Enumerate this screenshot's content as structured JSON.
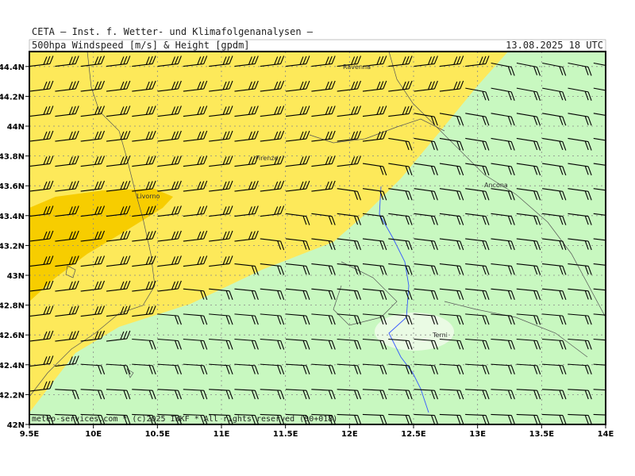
{
  "header": {
    "line1": "CETA — Inst. f. Wetter- und Klimafolgenanalysen —",
    "line2": "500hpa Windspeed [m/s] & Height [gpdm]",
    "date": "13.08.2025 18 UTC"
  },
  "map": {
    "lon_range": [
      9.5,
      14
    ],
    "lat_range": [
      42,
      44.5
    ],
    "x_ticks": [
      {
        "value": 9.5,
        "label": "9.5E"
      },
      {
        "value": 10,
        "label": "10E"
      },
      {
        "value": 10.5,
        "label": "10.5E"
      },
      {
        "value": 11,
        "label": "11E"
      },
      {
        "value": 11.5,
        "label": "11.5E"
      },
      {
        "value": 12,
        "label": "12E"
      },
      {
        "value": 12.5,
        "label": "12.5E"
      },
      {
        "value": 13,
        "label": "13E"
      },
      {
        "value": 13.5,
        "label": "13.5E"
      },
      {
        "value": 14,
        "label": "14E"
      }
    ],
    "y_ticks": [
      {
        "value": 42,
        "label": "42N"
      },
      {
        "value": 42.2,
        "label": "42.2N"
      },
      {
        "value": 42.4,
        "label": "42.4N"
      },
      {
        "value": 42.6,
        "label": "42.6N"
      },
      {
        "value": 42.8,
        "label": "42.8N"
      },
      {
        "value": 43,
        "label": "43N"
      },
      {
        "value": 43.2,
        "label": "43.2N"
      },
      {
        "value": 43.4,
        "label": "43.4N"
      },
      {
        "value": 43.6,
        "label": "43.6N"
      },
      {
        "value": 43.8,
        "label": "43.8N"
      },
      {
        "value": 44,
        "label": "44N"
      },
      {
        "value": 44.2,
        "label": "44.2N"
      },
      {
        "value": 44.4,
        "label": "44.4N"
      }
    ],
    "cities": [
      "Ravenna",
      "Firenze",
      "Livorno",
      "Ancona",
      "Terni"
    ]
  },
  "footer": "meteo-services.com * (c)2025 IWKF * All rights reserved (00+018)"
}
